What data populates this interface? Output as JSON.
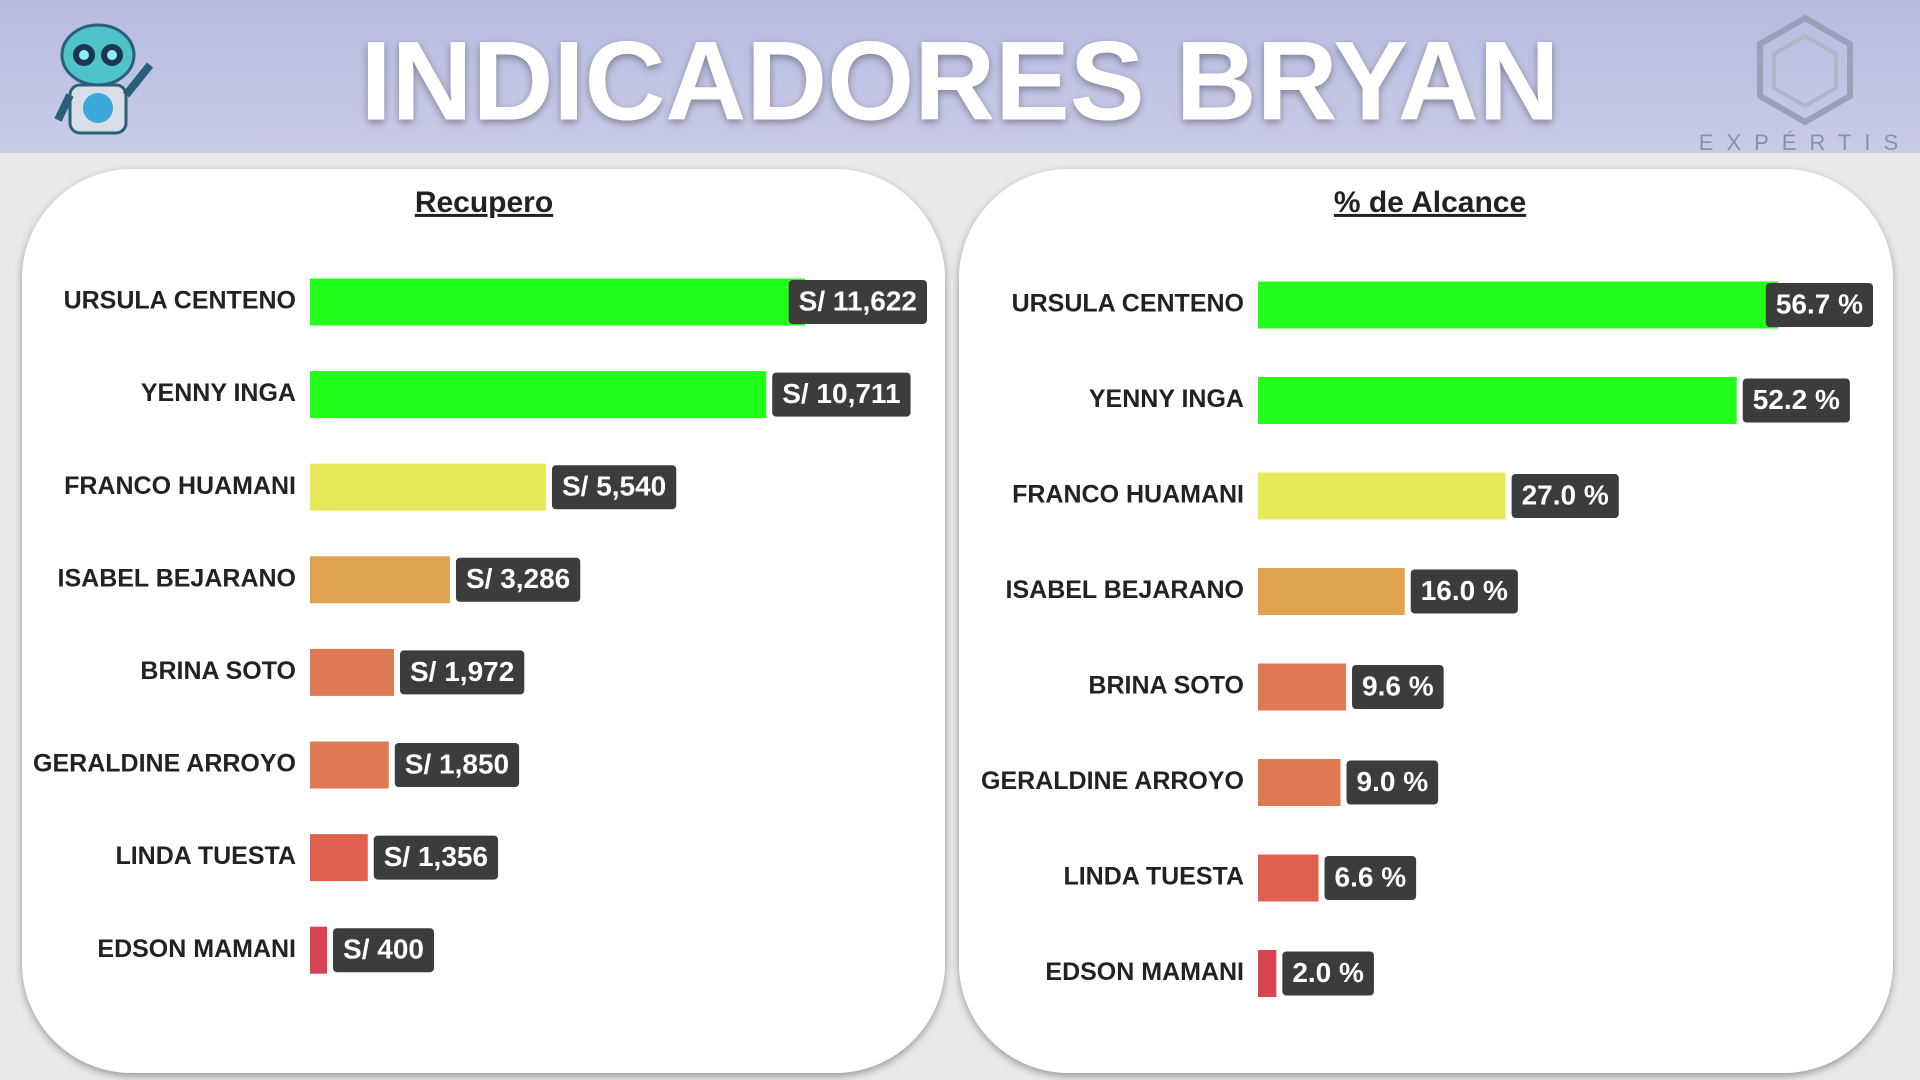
{
  "header": {
    "title": "INDICADORES BRYAN",
    "logo_text": "EXPÉRTIS"
  },
  "chart_data": [
    {
      "type": "bar",
      "orientation": "horizontal",
      "title": "Recupero",
      "categories": [
        "URSULA CENTENO",
        "YENNY INGA",
        "FRANCO HUAMANI",
        "ISABEL BEJARANO",
        "BRINA SOTO",
        "GERALDINE ARROYO",
        "LINDA TUESTA",
        "EDSON MAMANI"
      ],
      "values": [
        11622,
        10711,
        5540,
        3286,
        1972,
        1850,
        1356,
        400
      ],
      "value_labels": [
        "S/ 11,622",
        "S/ 10,711",
        "S/ 5,540",
        "S/ 3,286",
        "S/ 1,972",
        "S/ 1,850",
        "S/ 1,356",
        "S/ 400"
      ],
      "colors": [
        "#22ff1a",
        "#22ff1a",
        "#e6ea5a",
        "#e0a350",
        "#e07a55",
        "#e07a55",
        "#e0604f",
        "#d84452"
      ]
    },
    {
      "type": "bar",
      "orientation": "horizontal",
      "title": "% de Alcance",
      "categories": [
        "URSULA CENTENO",
        "YENNY INGA",
        "FRANCO HUAMANI",
        "ISABEL BEJARANO",
        "BRINA SOTO",
        "GERALDINE ARROYO",
        "LINDA TUESTA",
        "EDSON MAMANI"
      ],
      "values": [
        56.7,
        52.2,
        27.0,
        16.0,
        9.6,
        9.0,
        6.6,
        2.0
      ],
      "value_labels": [
        "56.7 %",
        "52.2 %",
        "27.0 %",
        "16.0 %",
        "9.6 %",
        "9.0 %",
        "6.6 %",
        "2.0 %"
      ],
      "colors": [
        "#22ff1a",
        "#22ff1a",
        "#e6ea5a",
        "#e0a350",
        "#e07a55",
        "#e07a55",
        "#e0604f",
        "#d84452"
      ]
    }
  ]
}
